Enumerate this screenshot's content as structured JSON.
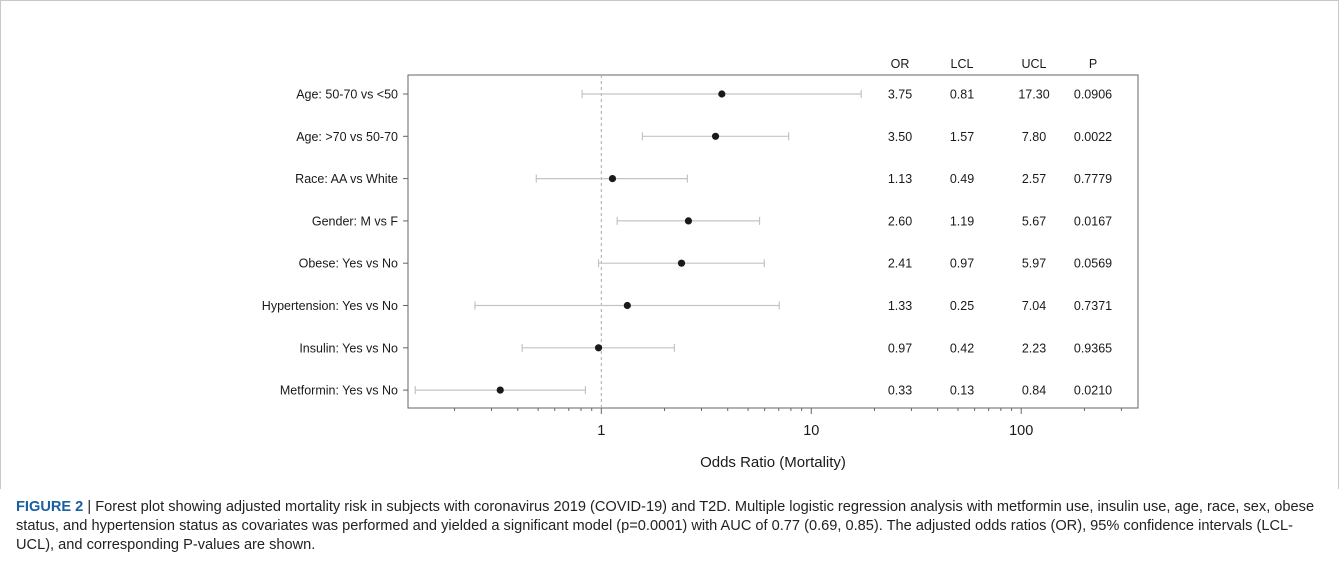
{
  "chart_data": {
    "type": "forest",
    "xlabel": "Odds Ratio (Mortality)",
    "x_scale": "log",
    "x_ticks": [
      1,
      10,
      100
    ],
    "x_tick_labels": [
      "1",
      "10",
      "100"
    ],
    "xlim": [
      0.12,
      360
    ],
    "reference_line": 1,
    "table_headers": [
      "OR",
      "LCL",
      "UCL",
      "P"
    ],
    "rows": [
      {
        "label": "Age: 50-70 vs <50",
        "or": 3.75,
        "lcl": 0.81,
        "ucl": 17.3,
        "or_text": "3.75",
        "lcl_text": "0.81",
        "ucl_text": "17.30",
        "p_text": "0.0906"
      },
      {
        "label": "Age: >70 vs 50-70",
        "or": 3.5,
        "lcl": 1.57,
        "ucl": 7.8,
        "or_text": "3.50",
        "lcl_text": "1.57",
        "ucl_text": "7.80",
        "p_text": "0.0022"
      },
      {
        "label": "Race: AA vs White",
        "or": 1.13,
        "lcl": 0.49,
        "ucl": 2.57,
        "or_text": "1.13",
        "lcl_text": "0.49",
        "ucl_text": "2.57",
        "p_text": "0.7779"
      },
      {
        "label": "Gender: M vs F",
        "or": 2.6,
        "lcl": 1.19,
        "ucl": 5.67,
        "or_text": "2.60",
        "lcl_text": "1.19",
        "ucl_text": "5.67",
        "p_text": "0.0167"
      },
      {
        "label": "Obese: Yes vs No",
        "or": 2.41,
        "lcl": 0.97,
        "ucl": 5.97,
        "or_text": "2.41",
        "lcl_text": "0.97",
        "ucl_text": "5.97",
        "p_text": "0.0569"
      },
      {
        "label": "Hypertension: Yes vs No",
        "or": 1.33,
        "lcl": 0.25,
        "ucl": 7.04,
        "or_text": "1.33",
        "lcl_text": "0.25",
        "ucl_text": "7.04",
        "p_text": "0.7371"
      },
      {
        "label": "Insulin: Yes vs No",
        "or": 0.97,
        "lcl": 0.42,
        "ucl": 2.23,
        "or_text": "0.97",
        "lcl_text": "0.42",
        "ucl_text": "2.23",
        "p_text": "0.9365"
      },
      {
        "label": "Metformin: Yes vs No",
        "or": 0.33,
        "lcl": 0.13,
        "ucl": 0.84,
        "or_text": "0.33",
        "lcl_text": "0.13",
        "ucl_text": "0.84",
        "p_text": "0.0210"
      }
    ],
    "colors": {
      "point": "#1a1a1a",
      "ci_line": "#c4c4c4",
      "ref_line": "#a8a8a8",
      "axis": "#666666"
    }
  },
  "caption": {
    "label": "FIGURE 2",
    "separator": " | ",
    "text": "Forest plot showing adjusted mortality risk in subjects with coronavirus 2019 (COVID-19) and T2D. Multiple logistic regression analysis with metformin use, insulin use, age, race, sex, obese status, and hypertension status as covariates was performed and yielded a significant model (p=0.0001) with AUC of 0.77 (0.69, 0.85). The adjusted odds ratios (OR), 95% confidence intervals (LCL-UCL), and corresponding P-values are shown."
  }
}
